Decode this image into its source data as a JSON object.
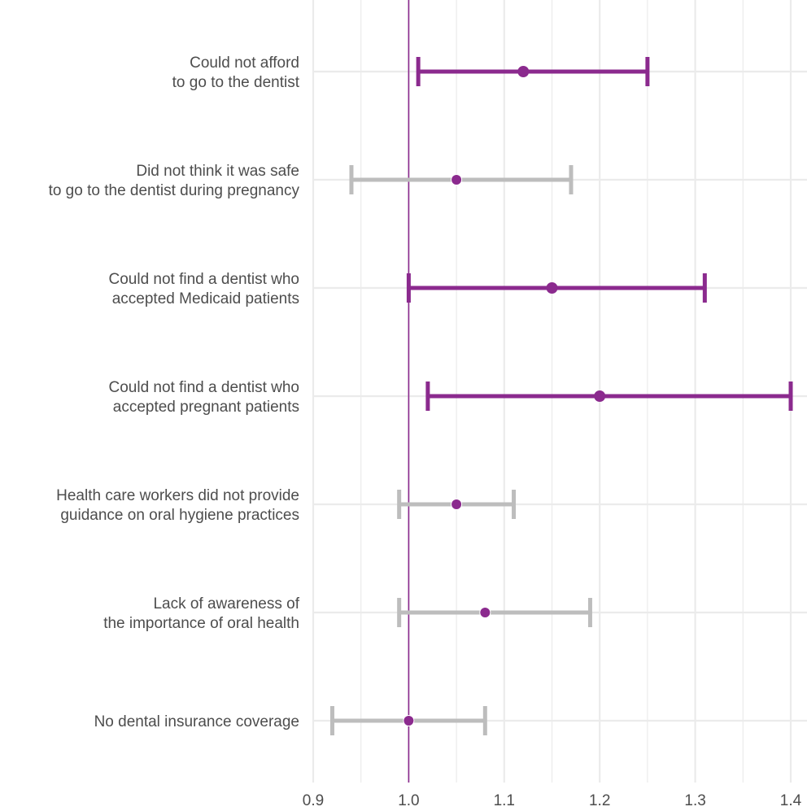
{
  "chart_data": {
    "type": "forest",
    "title": "",
    "xlabel": "",
    "ylabel": "",
    "xlim": [
      0.9,
      1.4
    ],
    "x_ticks": [
      "0.9",
      "1.0",
      "1.1",
      "1.2",
      "1.3",
      "1.4"
    ],
    "x_tick_values": [
      0.9,
      1.0,
      1.1,
      1.2,
      1.3,
      1.4
    ],
    "reference_line": 1.0,
    "grid": true,
    "legend": "none",
    "colors": {
      "significant": "#8b2a8e",
      "not_significant": "#bdbdbd",
      "point": "#8b2a8e",
      "reference": "#8b2a8e",
      "grid": "#ebebeb"
    },
    "items": [
      {
        "label_lines": [
          "Could not afford",
          "to go to the dentist"
        ],
        "estimate": 1.12,
        "lower": 1.01,
        "upper": 1.25,
        "significant": true
      },
      {
        "label_lines": [
          "Did not think it was safe",
          "to go to the dentist during pregnancy"
        ],
        "estimate": 1.05,
        "lower": 0.94,
        "upper": 1.17,
        "significant": false
      },
      {
        "label_lines": [
          "Could not find a dentist who",
          "accepted Medicaid patients"
        ],
        "estimate": 1.15,
        "lower": 1.0,
        "upper": 1.31,
        "significant": true
      },
      {
        "label_lines": [
          "Could not find a dentist who",
          "accepted pregnant patients"
        ],
        "estimate": 1.2,
        "lower": 1.02,
        "upper": 1.4,
        "significant": true
      },
      {
        "label_lines": [
          "Health care workers did not provide",
          "guidance on oral hygiene practices"
        ],
        "estimate": 1.05,
        "lower": 0.99,
        "upper": 1.11,
        "significant": false
      },
      {
        "label_lines": [
          "Lack of awareness of",
          "the importance of oral health"
        ],
        "estimate": 1.08,
        "lower": 0.99,
        "upper": 1.19,
        "significant": false
      },
      {
        "label_lines": [
          "No dental insurance coverage"
        ],
        "estimate": 1.0,
        "lower": 0.92,
        "upper": 1.08,
        "significant": false
      }
    ]
  }
}
